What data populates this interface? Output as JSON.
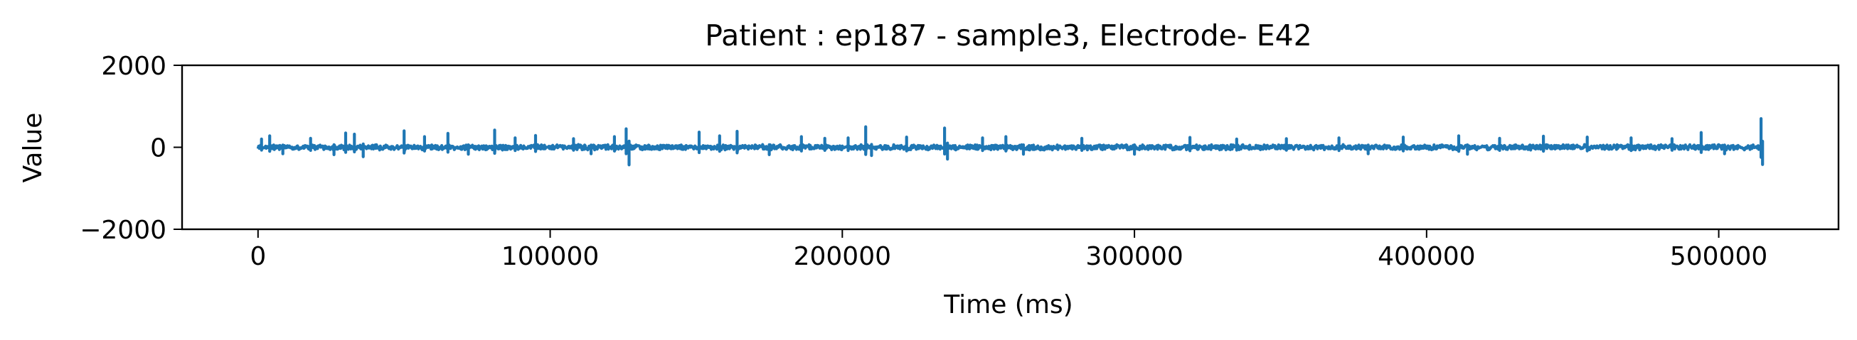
{
  "chart_data": {
    "type": "line",
    "title": "Patient : ep187 - sample3, Electrode- E42",
    "xlabel": "Time (ms)",
    "ylabel": "Value",
    "xlim": [
      -26000,
      541000
    ],
    "ylim": [
      -2000,
      2000
    ],
    "x_ticks": [
      {
        "value": 0,
        "label": "0"
      },
      {
        "value": 100000,
        "label": "100000"
      },
      {
        "value": 200000,
        "label": "200000"
      },
      {
        "value": 300000,
        "label": "300000"
      },
      {
        "value": 400000,
        "label": "400000"
      },
      {
        "value": 500000,
        "label": "500000"
      }
    ],
    "y_ticks": [
      {
        "value": -2000,
        "label": "−2000"
      },
      {
        "value": 0,
        "label": "0"
      },
      {
        "value": 2000,
        "label": "2000"
      }
    ],
    "grid": false,
    "legend": "none",
    "series": [
      {
        "color": "#1f77b4",
        "x_range": [
          0,
          515000
        ],
        "baseline_amplitude": 70,
        "spikes": [
          {
            "x": 1200,
            "y": 200
          },
          {
            "x": 4000,
            "y": 280
          },
          {
            "x": 8500,
            "y": -160
          },
          {
            "x": 18000,
            "y": 220
          },
          {
            "x": 26000,
            "y": -180
          },
          {
            "x": 30000,
            "y": 350
          },
          {
            "x": 33000,
            "y": 320
          },
          {
            "x": 36000,
            "y": -230
          },
          {
            "x": 50000,
            "y": 400
          },
          {
            "x": 57000,
            "y": 260
          },
          {
            "x": 65000,
            "y": 340
          },
          {
            "x": 72000,
            "y": -170
          },
          {
            "x": 81000,
            "y": 420
          },
          {
            "x": 88000,
            "y": 230
          },
          {
            "x": 95000,
            "y": 290
          },
          {
            "x": 108000,
            "y": 210
          },
          {
            "x": 114000,
            "y": -160
          },
          {
            "x": 122000,
            "y": 260
          },
          {
            "x": 126000,
            "y": 450
          },
          {
            "x": 127000,
            "y": -430
          },
          {
            "x": 151000,
            "y": 370
          },
          {
            "x": 158000,
            "y": 280
          },
          {
            "x": 164000,
            "y": 390
          },
          {
            "x": 175000,
            "y": -180
          },
          {
            "x": 186000,
            "y": 260
          },
          {
            "x": 194000,
            "y": 220
          },
          {
            "x": 202000,
            "y": 230
          },
          {
            "x": 208000,
            "y": 500
          },
          {
            "x": 210000,
            "y": -200
          },
          {
            "x": 222000,
            "y": 250
          },
          {
            "x": 235000,
            "y": 470
          },
          {
            "x": 236000,
            "y": -290
          },
          {
            "x": 248000,
            "y": 230
          },
          {
            "x": 256000,
            "y": 260
          },
          {
            "x": 262000,
            "y": -170
          },
          {
            "x": 282000,
            "y": 220
          },
          {
            "x": 300000,
            "y": -170
          },
          {
            "x": 319000,
            "y": 240
          },
          {
            "x": 335000,
            "y": 200
          },
          {
            "x": 352000,
            "y": 210
          },
          {
            "x": 370000,
            "y": 230
          },
          {
            "x": 380000,
            "y": -160
          },
          {
            "x": 392000,
            "y": 250
          },
          {
            "x": 411000,
            "y": 280
          },
          {
            "x": 414000,
            "y": -170
          },
          {
            "x": 425000,
            "y": 220
          },
          {
            "x": 440000,
            "y": 270
          },
          {
            "x": 455000,
            "y": 250
          },
          {
            "x": 470000,
            "y": 230
          },
          {
            "x": 484000,
            "y": 210
          },
          {
            "x": 494000,
            "y": 360
          },
          {
            "x": 502000,
            "y": -160
          },
          {
            "x": 514500,
            "y": 700
          },
          {
            "x": 515000,
            "y": -420
          }
        ]
      }
    ]
  }
}
